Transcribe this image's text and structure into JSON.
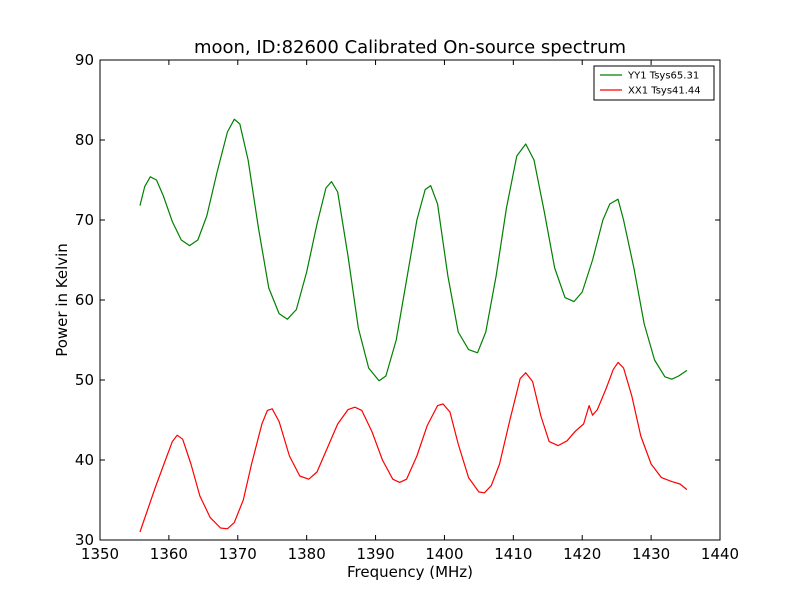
{
  "chart_data": {
    "type": "line",
    "title": "moon, ID:82600 Calibrated On-source spectrum",
    "xlabel": "Frequency (MHz)",
    "ylabel": "Power in Kelvin",
    "xlim": [
      1350,
      1440
    ],
    "ylim": [
      30,
      90
    ],
    "xticks": [
      1350,
      1360,
      1370,
      1380,
      1390,
      1400,
      1410,
      1420,
      1430,
      1440
    ],
    "yticks": [
      30,
      40,
      50,
      60,
      70,
      80,
      90
    ],
    "grid": false,
    "legend_position": "top-right",
    "series": [
      {
        "name": "YY1 Tsys65.31",
        "color": "#008000",
        "points": [
          [
            1355.8,
            71.8
          ],
          [
            1356.5,
            74.2
          ],
          [
            1357.3,
            75.4
          ],
          [
            1358.2,
            75.0
          ],
          [
            1359.2,
            73.0
          ],
          [
            1360.5,
            69.8
          ],
          [
            1361.8,
            67.5
          ],
          [
            1363.0,
            66.8
          ],
          [
            1364.2,
            67.5
          ],
          [
            1365.5,
            70.5
          ],
          [
            1367.0,
            76.0
          ],
          [
            1368.5,
            81.0
          ],
          [
            1369.5,
            82.6
          ],
          [
            1370.3,
            82.0
          ],
          [
            1371.5,
            77.5
          ],
          [
            1373.0,
            69.0
          ],
          [
            1374.5,
            61.5
          ],
          [
            1376.0,
            58.3
          ],
          [
            1377.2,
            57.6
          ],
          [
            1378.5,
            58.8
          ],
          [
            1380.0,
            63.5
          ],
          [
            1381.5,
            69.5
          ],
          [
            1382.8,
            74.0
          ],
          [
            1383.6,
            74.8
          ],
          [
            1384.5,
            73.5
          ],
          [
            1386.0,
            65.5
          ],
          [
            1387.5,
            56.5
          ],
          [
            1389.0,
            51.5
          ],
          [
            1390.5,
            49.9
          ],
          [
            1391.5,
            50.5
          ],
          [
            1393.0,
            55.0
          ],
          [
            1394.5,
            62.5
          ],
          [
            1396.0,
            70.0
          ],
          [
            1397.2,
            73.8
          ],
          [
            1398.0,
            74.3
          ],
          [
            1399.0,
            72.0
          ],
          [
            1400.5,
            63.0
          ],
          [
            1402.0,
            56.0
          ],
          [
            1403.5,
            53.8
          ],
          [
            1404.8,
            53.4
          ],
          [
            1406.0,
            56.0
          ],
          [
            1407.5,
            63.0
          ],
          [
            1409.0,
            71.5
          ],
          [
            1410.5,
            78.0
          ],
          [
            1411.8,
            79.5
          ],
          [
            1413.0,
            77.5
          ],
          [
            1414.5,
            71.0
          ],
          [
            1416.0,
            64.0
          ],
          [
            1417.5,
            60.3
          ],
          [
            1418.8,
            59.8
          ],
          [
            1420.0,
            61.0
          ],
          [
            1421.5,
            65.0
          ],
          [
            1423.0,
            70.0
          ],
          [
            1424.0,
            72.0
          ],
          [
            1425.2,
            72.6
          ],
          [
            1426.0,
            70.0
          ],
          [
            1427.5,
            64.0
          ],
          [
            1429.0,
            57.0
          ],
          [
            1430.5,
            52.5
          ],
          [
            1432.0,
            50.4
          ],
          [
            1433.0,
            50.1
          ],
          [
            1434.0,
            50.5
          ],
          [
            1435.2,
            51.2
          ]
        ]
      },
      {
        "name": "XX1 Tsys41.44",
        "color": "#ff0000",
        "points": [
          [
            1355.8,
            31.0
          ],
          [
            1356.8,
            33.5
          ],
          [
            1358.0,
            36.5
          ],
          [
            1359.5,
            40.0
          ],
          [
            1360.5,
            42.3
          ],
          [
            1361.2,
            43.1
          ],
          [
            1362.0,
            42.6
          ],
          [
            1363.2,
            39.5
          ],
          [
            1364.5,
            35.5
          ],
          [
            1366.0,
            32.8
          ],
          [
            1367.5,
            31.5
          ],
          [
            1368.5,
            31.4
          ],
          [
            1369.5,
            32.2
          ],
          [
            1370.8,
            35.0
          ],
          [
            1372.0,
            39.5
          ],
          [
            1373.5,
            44.5
          ],
          [
            1374.3,
            46.2
          ],
          [
            1375.0,
            46.4
          ],
          [
            1376.0,
            44.8
          ],
          [
            1377.5,
            40.5
          ],
          [
            1379.0,
            38.0
          ],
          [
            1380.3,
            37.6
          ],
          [
            1381.5,
            38.5
          ],
          [
            1383.0,
            41.5
          ],
          [
            1384.5,
            44.5
          ],
          [
            1386.0,
            46.3
          ],
          [
            1387.0,
            46.6
          ],
          [
            1388.0,
            46.2
          ],
          [
            1389.5,
            43.5
          ],
          [
            1391.0,
            40.0
          ],
          [
            1392.5,
            37.6
          ],
          [
            1393.5,
            37.2
          ],
          [
            1394.5,
            37.6
          ],
          [
            1396.0,
            40.5
          ],
          [
            1397.5,
            44.3
          ],
          [
            1399.0,
            46.8
          ],
          [
            1399.8,
            47.0
          ],
          [
            1400.8,
            46.0
          ],
          [
            1402.0,
            42.0
          ],
          [
            1403.5,
            37.8
          ],
          [
            1405.0,
            36.0
          ],
          [
            1405.8,
            35.9
          ],
          [
            1406.8,
            36.8
          ],
          [
            1408.0,
            39.5
          ],
          [
            1409.5,
            45.0
          ],
          [
            1411.0,
            50.2
          ],
          [
            1411.8,
            50.9
          ],
          [
            1412.8,
            49.8
          ],
          [
            1414.0,
            45.5
          ],
          [
            1415.2,
            42.3
          ],
          [
            1416.5,
            41.8
          ],
          [
            1417.8,
            42.4
          ],
          [
            1419.0,
            43.6
          ],
          [
            1420.2,
            44.5
          ],
          [
            1421.0,
            46.8
          ],
          [
            1421.5,
            45.6
          ],
          [
            1422.2,
            46.3
          ],
          [
            1423.5,
            49.0
          ],
          [
            1424.5,
            51.3
          ],
          [
            1425.2,
            52.2
          ],
          [
            1426.0,
            51.5
          ],
          [
            1427.2,
            48.0
          ],
          [
            1428.5,
            43.0
          ],
          [
            1430.0,
            39.5
          ],
          [
            1431.5,
            37.8
          ],
          [
            1433.0,
            37.3
          ],
          [
            1434.2,
            37.0
          ],
          [
            1435.2,
            36.3
          ]
        ]
      }
    ]
  }
}
